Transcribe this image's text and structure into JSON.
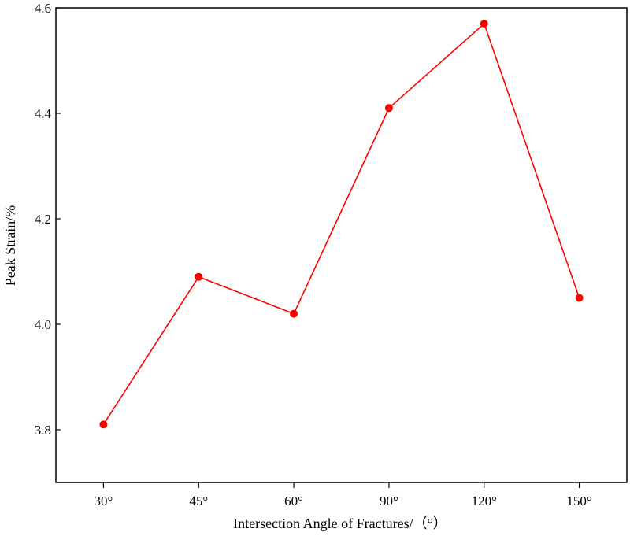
{
  "chart_data": {
    "type": "line",
    "categories": [
      "30°",
      "45°",
      "60°",
      "90°",
      "120°",
      "150°"
    ],
    "series": [
      {
        "values": [
          3.81,
          4.09,
          4.02,
          4.41,
          4.57,
          4.05
        ],
        "color": "#ff0000",
        "marker": "circle"
      }
    ],
    "xlabel": "Intersection Angle of Fractures/（°）",
    "ylabel": "Peak Strain/%",
    "ylim": [
      3.7,
      4.6
    ],
    "yticks": [
      "3.8",
      "4.0",
      "4.2",
      "4.4",
      "4.6"
    ],
    "grid": false,
    "legend": "none"
  }
}
